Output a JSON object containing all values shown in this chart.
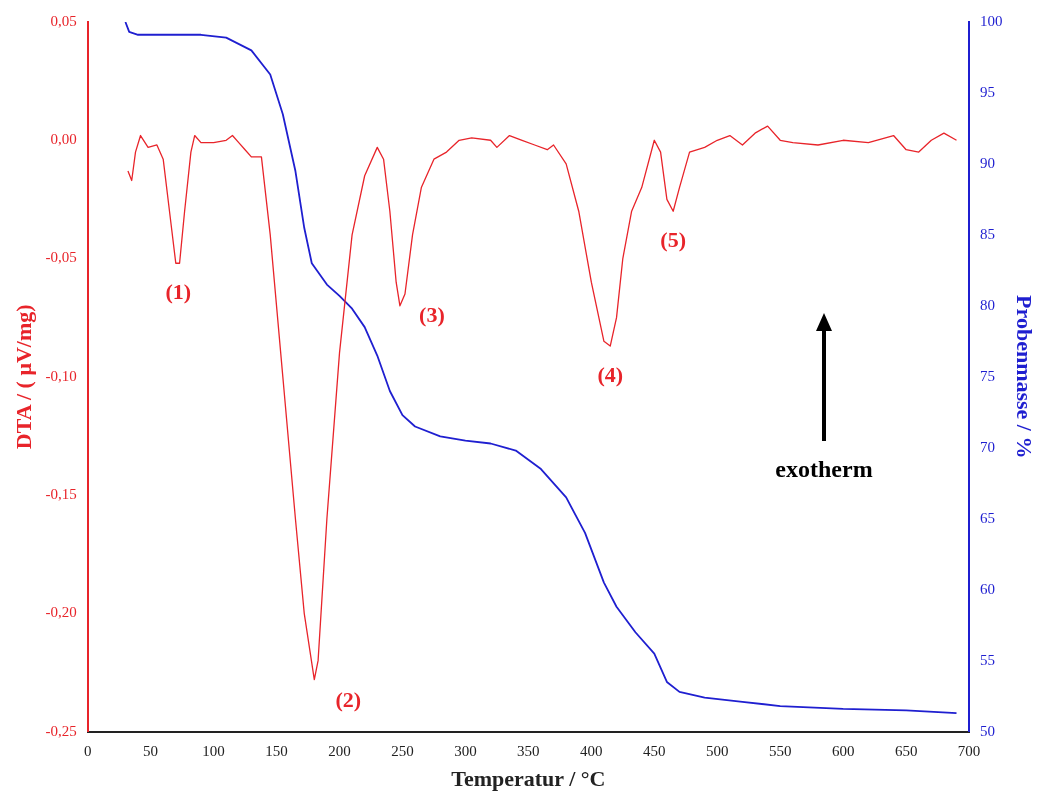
{
  "chart_data": {
    "type": "line",
    "xlabel": "Temperatur / °C",
    "ylabel": "DTA / ( μV/mg)",
    "y2label": "Probenmasse / %",
    "xlim": [
      0,
      700
    ],
    "xticks": [
      0,
      50,
      100,
      150,
      200,
      250,
      300,
      350,
      400,
      450,
      500,
      550,
      600,
      650,
      700
    ],
    "ylim": [
      -0.25,
      0.05
    ],
    "yticks": [
      {
        "value": -0.25,
        "label": "-0,25"
      },
      {
        "value": -0.2,
        "label": "-0,20"
      },
      {
        "value": -0.15,
        "label": "-0,15"
      },
      {
        "value": -0.1,
        "label": "-0,10"
      },
      {
        "value": -0.05,
        "label": "-0,05"
      },
      {
        "value": 0,
        "label": "0,00"
      },
      {
        "value": 0.05,
        "label": "0,05"
      }
    ],
    "y2lim": [
      50,
      100
    ],
    "y2ticks": [
      50,
      55,
      60,
      65,
      70,
      75,
      80,
      85,
      90,
      95,
      100
    ],
    "grid": false,
    "legend": false,
    "marker": "none",
    "line_style": "solid",
    "series": [
      {
        "color": "#e8242a",
        "x": [
          32,
          35,
          38,
          42,
          48,
          55,
          60,
          65,
          70,
          73,
          77,
          82,
          85,
          90,
          100,
          110,
          115,
          120,
          125,
          130,
          138,
          145,
          155,
          165,
          172,
          180,
          183,
          190,
          200,
          210,
          220,
          230,
          235,
          240,
          245,
          248,
          252,
          258,
          265,
          275,
          285,
          295,
          305,
          320,
          325,
          335,
          345,
          355,
          365,
          370,
          380,
          390,
          400,
          410,
          415,
          420,
          425,
          432,
          440,
          450,
          455,
          460,
          465,
          470,
          478,
          490,
          500,
          510,
          520,
          530,
          540,
          550,
          560,
          580,
          600,
          620,
          640,
          650,
          660,
          670,
          680,
          690
        ],
        "values": [
          -0.013,
          -0.017,
          -0.005,
          0.002,
          -0.003,
          -0.002,
          -0.008,
          -0.03,
          -0.052,
          -0.052,
          -0.03,
          -0.005,
          0.002,
          -0.001,
          -0.001,
          0,
          0.002,
          -0.001,
          -0.004,
          -0.007,
          -0.007,
          -0.04,
          -0.1,
          -0.16,
          -0.2,
          -0.228,
          -0.22,
          -0.16,
          -0.09,
          -0.04,
          -0.015,
          -0.003,
          -0.008,
          -0.03,
          -0.06,
          -0.07,
          -0.065,
          -0.04,
          -0.02,
          -0.008,
          -0.005,
          0,
          0.001,
          0,
          -0.003,
          0.002,
          0,
          -0.002,
          -0.004,
          -0.002,
          -0.01,
          -0.03,
          -0.06,
          -0.085,
          -0.087,
          -0.075,
          -0.05,
          -0.03,
          -0.02,
          0,
          -0.005,
          -0.025,
          -0.03,
          -0.02,
          -0.005,
          -0.003,
          0,
          0.002,
          -0.002,
          0.003,
          0.006,
          0,
          -0.001,
          -0.002,
          0,
          -0.001,
          0.002,
          -0.004,
          -0.005,
          0,
          0.003,
          0
        ]
      },
      {
        "color": "#1f1fd0",
        "axis": "y2",
        "x": [
          30,
          33,
          40,
          60,
          90,
          110,
          130,
          145,
          155,
          165,
          172,
          178,
          190,
          200,
          210,
          220,
          230,
          240,
          250,
          260,
          280,
          300,
          320,
          340,
          360,
          380,
          395,
          410,
          420,
          435,
          450,
          460,
          470,
          490,
          520,
          550,
          600,
          650,
          690
        ],
        "values": [
          100,
          99.3,
          99.1,
          99.1,
          99.1,
          98.9,
          98,
          96.3,
          93.5,
          89.5,
          85.5,
          83,
          81.5,
          80.7,
          79.8,
          78.5,
          76.5,
          74,
          72.3,
          71.5,
          70.8,
          70.5,
          70.3,
          69.8,
          68.5,
          66.5,
          64,
          60.5,
          58.8,
          57,
          55.5,
          53.5,
          52.8,
          52.4,
          52.1,
          51.8,
          51.6,
          51.5,
          51.3
        ]
      }
    ],
    "annotations": [
      {
        "text": "(1)",
        "x": 72,
        "y": -0.052
      },
      {
        "text": "(2)",
        "x": 180,
        "y": -0.228
      },
      {
        "text": "(3)",
        "x": 248,
        "y": -0.07
      },
      {
        "text": "(4)",
        "x": 415,
        "y": -0.087
      },
      {
        "text": "(5)",
        "x": 465,
        "y": -0.03
      },
      "exotherm"
    ]
  }
}
